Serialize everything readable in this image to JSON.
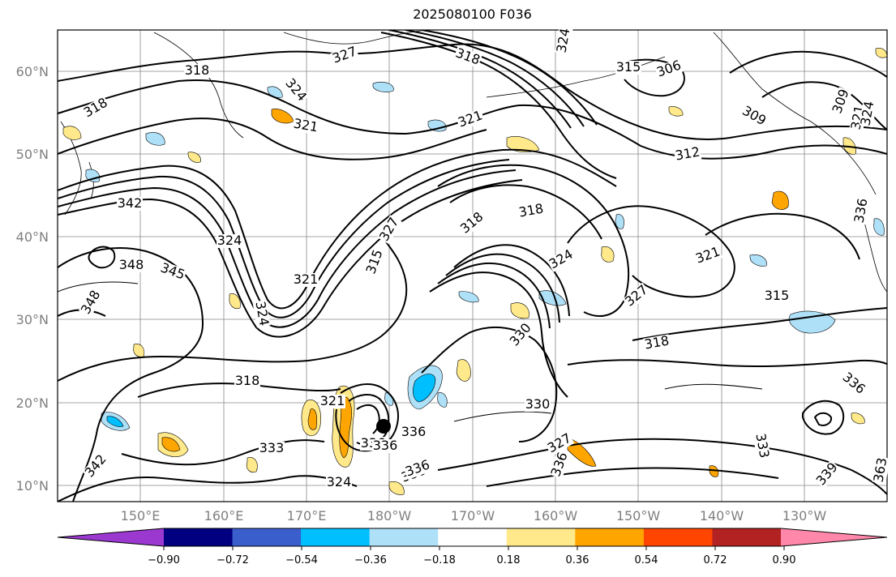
{
  "title": "2025080100 F036",
  "map": {
    "lat_labels": [
      "60°N",
      "50°N",
      "40°N",
      "30°N",
      "20°N",
      "10°N"
    ],
    "lon_labels": [
      "150°E",
      "160°E",
      "170°E",
      "180°W",
      "170°W",
      "160°W",
      "150°W",
      "140°W",
      "130°W"
    ],
    "contour_labels": [
      "327",
      "318",
      "318",
      "324",
      "321",
      "321",
      "309",
      "306",
      "315",
      "318",
      "324",
      "321",
      "324",
      "309",
      "318",
      "312",
      "324",
      "342",
      "345",
      "324",
      "327",
      "318",
      "315",
      "336",
      "348",
      "321",
      "324",
      "321",
      "348",
      "327",
      "315",
      "318",
      "330",
      "318",
      "330",
      "321",
      "327",
      "333",
      "336",
      "336",
      "336",
      "336",
      "333",
      "324",
      "336",
      "336",
      "342",
      "339",
      "363",
      "336"
    ],
    "colorbar": {
      "ticks": [
        "−0.90",
        "−0.72",
        "−0.54",
        "−0.36",
        "−0.18",
        "0.18",
        "0.36",
        "0.54",
        "0.72",
        "0.90"
      ],
      "colors": [
        "#9a38d0",
        "#000080",
        "#3a5fcd",
        "#00bfff",
        "#aee0f8",
        "#ffffff",
        "#ffe98a",
        "#ffa500",
        "#ff4500",
        "#b22222",
        "#ff88aa"
      ]
    },
    "storm_marker": "black-dot"
  }
}
